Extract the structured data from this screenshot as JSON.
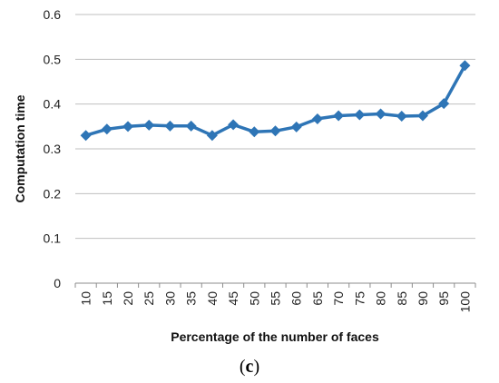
{
  "chart_data": {
    "type": "line",
    "x": [
      10,
      15,
      20,
      25,
      30,
      35,
      40,
      45,
      50,
      55,
      60,
      65,
      70,
      75,
      80,
      85,
      90,
      95,
      100
    ],
    "series": [
      {
        "values": [
          0.33,
          0.344,
          0.35,
          0.353,
          0.351,
          0.351,
          0.33,
          0.354,
          0.338,
          0.34,
          0.349,
          0.367,
          0.374,
          0.376,
          0.378,
          0.373,
          0.374,
          0.401,
          0.486
        ]
      }
    ],
    "xlabel": "Percentage of the number of faces",
    "ylabel": "Computation time",
    "ylim": [
      0,
      0.6
    ],
    "yticks": [
      "0",
      "0.1",
      "0.2",
      "0.3",
      "0.4",
      "0.5",
      "0.6"
    ],
    "grid": true,
    "legend": "none",
    "line_color": "#2E75B6"
  },
  "caption": {
    "open": "(",
    "letter": "c",
    "close": ")"
  }
}
